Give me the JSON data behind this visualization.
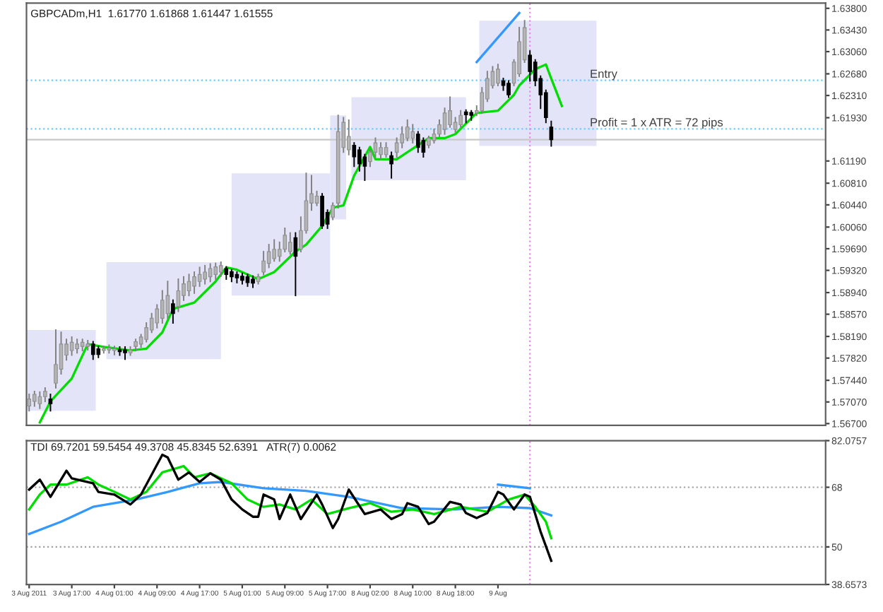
{
  "chart_data": [
    {
      "type": "candlestick",
      "title": "GBPCADm,H1  1.61770 1.61868 1.61447 1.61555",
      "tick_labels": "y",
      "categories": [
        null,
        null,
        null,
        null,
        null,
        null,
        null,
        null,
        null,
        null,
        null,
        null,
        null,
        null,
        null,
        null,
        null,
        null,
        null,
        null,
        null,
        null,
        null,
        null,
        null,
        null,
        null,
        null,
        null,
        null,
        null,
        null,
        null,
        null,
        null,
        null,
        null,
        null,
        null,
        null,
        null,
        null,
        null,
        null,
        null,
        null,
        null,
        null,
        null,
        null,
        null,
        null,
        null,
        null,
        null,
        null,
        null,
        null,
        null,
        null,
        null,
        null,
        null,
        null,
        null,
        null,
        null,
        null,
        null,
        null,
        null,
        null,
        null,
        null,
        null,
        null,
        null,
        null,
        null,
        null,
        null,
        null,
        null,
        null,
        null,
        null,
        null,
        null,
        null,
        null,
        null,
        null,
        null,
        null,
        null,
        null,
        null,
        null,
        null,
        null,
        null,
        null,
        null,
        null,
        null,
        null,
        null,
        null,
        null,
        null,
        null,
        null,
        null,
        null,
        null,
        null,
        null,
        null,
        null,
        null,
        null,
        null,
        null,
        null,
        null,
        null,
        null,
        null,
        null,
        null,
        null,
        null,
        null,
        null,
        null,
        null,
        null,
        null,
        null,
        null,
        null,
        null,
        null,
        null,
        null,
        null,
        null,
        null,
        null,
        null
      ],
      "ohlc": [
        [
          1.57,
          1.572,
          1.5692,
          1.5712
        ],
        [
          1.5708,
          1.5725,
          1.57,
          1.572
        ],
        [
          1.5704,
          1.5724,
          1.5696,
          1.5716
        ],
        [
          1.5716,
          1.5731,
          1.5708,
          1.5725
        ],
        [
          1.5712,
          1.572,
          1.5692,
          1.5704
        ],
        [
          1.5739,
          1.583,
          1.5731,
          1.5771
        ],
        [
          1.5763,
          1.5826,
          1.5755,
          1.5806
        ],
        [
          1.5787,
          1.5814,
          1.5779,
          1.5806
        ],
        [
          1.5795,
          1.5818,
          1.5787,
          1.5809
        ],
        [
          1.5798,
          1.5814,
          1.5791,
          1.5806
        ],
        [
          1.5802,
          1.5814,
          1.5795,
          1.5809
        ],
        [
          1.5802,
          1.5812,
          1.5796,
          1.5806
        ],
        [
          1.5806,
          1.581,
          1.578,
          1.5788
        ],
        [
          1.5798,
          1.5802,
          1.5783,
          1.5788
        ],
        [
          1.5795,
          1.5802,
          1.5791,
          1.5798
        ],
        [
          1.5796,
          1.5804,
          1.5791,
          1.5799
        ],
        [
          1.5795,
          1.5802,
          1.5788,
          1.5798
        ],
        [
          1.5796,
          1.5801,
          1.5787,
          1.5793
        ],
        [
          1.5796,
          1.5801,
          1.578,
          1.5791
        ],
        [
          1.5791,
          1.5801,
          1.5787,
          1.5796
        ],
        [
          1.5802,
          1.5814,
          1.5795,
          1.581
        ],
        [
          1.5806,
          1.5822,
          1.5801,
          1.5818
        ],
        [
          1.5814,
          1.5842,
          1.581,
          1.5834
        ],
        [
          1.583,
          1.5858,
          1.5826,
          1.585
        ],
        [
          1.5842,
          1.5873,
          1.5834,
          1.5866
        ],
        [
          1.585,
          1.5897,
          1.5842,
          1.5881
        ],
        [
          1.5858,
          1.5913,
          1.585,
          1.5889
        ],
        [
          1.5875,
          1.5881,
          1.5842,
          1.5858
        ],
        [
          1.587,
          1.5917,
          1.5862,
          1.5897
        ],
        [
          1.5889,
          1.5921,
          1.5881,
          1.5909
        ],
        [
          1.5897,
          1.5925,
          1.5889,
          1.5913
        ],
        [
          1.5905,
          1.5929,
          1.5893,
          1.5921
        ],
        [
          1.5913,
          1.5937,
          1.5905,
          1.5925
        ],
        [
          1.5917,
          1.594,
          1.5909,
          1.5929
        ],
        [
          1.5921,
          1.5943,
          1.5913,
          1.5935
        ],
        [
          1.5925,
          1.5944,
          1.5917,
          1.5938
        ],
        [
          1.5929,
          1.5946,
          1.5922,
          1.594
        ],
        [
          1.5935,
          1.5938,
          1.5917,
          1.5925
        ],
        [
          1.593,
          1.5933,
          1.5913,
          1.5921
        ],
        [
          1.5925,
          1.5929,
          1.5911,
          1.5919
        ],
        [
          1.5922,
          1.5927,
          1.5909,
          1.5915
        ],
        [
          1.5921,
          1.5925,
          1.5905,
          1.5911
        ],
        [
          1.5917,
          1.5922,
          1.5903,
          1.591
        ],
        [
          1.5913,
          1.5925,
          1.5909,
          1.5921
        ],
        [
          1.5929,
          1.5964,
          1.5925,
          1.5948
        ],
        [
          1.5944,
          1.5976,
          1.5937,
          1.5964
        ],
        [
          1.5952,
          1.5984,
          1.5948,
          1.5968
        ],
        [
          1.5956,
          1.598,
          1.5948,
          1.5968
        ],
        [
          1.5968,
          1.6004,
          1.5964,
          1.5992
        ],
        [
          1.5964,
          1.5996,
          1.596,
          1.598
        ],
        [
          1.5988,
          1.5996,
          1.5889,
          1.5956
        ],
        [
          1.5968,
          1.6023,
          1.5964,
          1.6
        ],
        [
          1.6,
          1.6098,
          1.5996,
          1.6051
        ],
        [
          1.6047,
          1.6094,
          1.6035,
          1.6063
        ],
        [
          1.6047,
          1.6067,
          1.6043,
          1.6059
        ],
        [
          1.6059,
          1.6063,
          1.6004,
          1.6008
        ],
        [
          1.6031,
          1.6035,
          1.6004,
          1.6011
        ],
        [
          1.6023,
          1.6047,
          1.6019,
          1.6043
        ],
        [
          1.6047,
          1.6197,
          1.6039,
          1.6169
        ],
        [
          1.6142,
          1.6193,
          1.6134,
          1.6185
        ],
        [
          1.6138,
          1.6189,
          1.613,
          1.6161
        ],
        [
          1.6146,
          1.615,
          1.611,
          1.6126
        ],
        [
          1.6138,
          1.6142,
          1.6102,
          1.6114
        ],
        [
          1.6126,
          1.613,
          1.6086,
          1.611
        ],
        [
          1.6118,
          1.6138,
          1.611,
          1.6134
        ],
        [
          1.6134,
          1.6158,
          1.6126,
          1.615
        ],
        [
          1.613,
          1.615,
          1.6122,
          1.6142
        ],
        [
          1.613,
          1.615,
          1.6126,
          1.6142
        ],
        [
          1.6128,
          1.6134,
          1.609,
          1.6114
        ],
        [
          1.6134,
          1.6158,
          1.6126,
          1.615
        ],
        [
          1.615,
          1.6177,
          1.6142,
          1.6165
        ],
        [
          1.6158,
          1.6189,
          1.6154,
          1.6177
        ],
        [
          1.6158,
          1.6181,
          1.615,
          1.6169
        ],
        [
          1.6165,
          1.6169,
          1.6134,
          1.6142
        ],
        [
          1.6154,
          1.6158,
          1.6126,
          1.6134
        ],
        [
          1.6146,
          1.6161,
          1.6142,
          1.6158
        ],
        [
          1.6154,
          1.6173,
          1.615,
          1.6165
        ],
        [
          1.6165,
          1.6189,
          1.6161,
          1.6181
        ],
        [
          1.6173,
          1.6209,
          1.6165,
          1.6201
        ],
        [
          1.6181,
          1.6228,
          1.6177,
          1.6205
        ],
        [
          1.6173,
          1.6193,
          1.6169,
          1.6185
        ],
        [
          1.6181,
          1.6205,
          1.6177,
          1.6197
        ],
        [
          1.6203,
          1.6206,
          1.6185,
          1.6198
        ],
        [
          1.6202,
          1.6205,
          1.6189,
          1.6197
        ],
        [
          1.6201,
          1.6213,
          1.6197,
          1.6205
        ],
        [
          1.6205,
          1.6244,
          1.6201,
          1.6236
        ],
        [
          1.6225,
          1.6272,
          1.6221,
          1.626
        ],
        [
          1.6248,
          1.628,
          1.6244,
          1.6272
        ],
        [
          1.6252,
          1.6284,
          1.6248,
          1.6276
        ],
        [
          1.6256,
          1.626,
          1.624,
          1.6248
        ],
        [
          1.6252,
          1.6256,
          1.6228,
          1.6232
        ],
        [
          1.6252,
          1.6292,
          1.6248,
          1.6288
        ],
        [
          1.6268,
          1.6347,
          1.6264,
          1.6323
        ],
        [
          1.6292,
          1.6359,
          1.6288,
          1.6347
        ],
        [
          1.63,
          1.6307,
          1.6256,
          1.6272
        ],
        [
          1.6288,
          1.6292,
          1.6248,
          1.6256
        ],
        [
          1.626,
          1.6264,
          1.6209,
          1.6232
        ],
        [
          1.6236,
          1.624,
          1.6185,
          1.6193
        ],
        [
          1.6177,
          1.61868,
          1.61447,
          1.61555
        ],
        null,
        null,
        null,
        null,
        null,
        null,
        null,
        null,
        null,
        null,
        null,
        null,
        null,
        null,
        null,
        null,
        null,
        null,
        null,
        null,
        null,
        null,
        null,
        null,
        null,
        null,
        null,
        null,
        null,
        null,
        null,
        null,
        null,
        null,
        null,
        null,
        null,
        null,
        null,
        null,
        null,
        null,
        null,
        null,
        null,
        null,
        null,
        null,
        null,
        null,
        null
      ],
      "series": [
        {
          "type": "line",
          "color": "#00dd00",
          "values": [
            null,
            null,
            1.5672,
            null,
            1.5708,
            null,
            null,
            null,
            1.5747,
            null,
            null,
            1.5806,
            null,
            null,
            1.5801,
            null,
            null,
            null,
            null,
            1.5795,
            null,
            null,
            1.5798,
            null,
            null,
            1.5826,
            null,
            1.5866,
            null,
            null,
            null,
            1.5877,
            null,
            null,
            null,
            1.5913,
            null,
            1.5937,
            null,
            1.5933,
            null,
            null,
            null,
            1.5917,
            null,
            null,
            1.5929,
            null,
            null,
            null,
            1.5964,
            null,
            1.5976,
            null,
            null,
            1.6008,
            null,
            1.6039,
            null,
            1.6043,
            null,
            1.6094,
            null,
            null,
            1.6143,
            1.6122,
            null,
            null,
            null,
            1.6122,
            null,
            1.6134,
            null,
            null,
            null,
            1.6158,
            null,
            null,
            1.6158,
            null,
            1.6165,
            null,
            null,
            null,
            1.6201,
            null,
            null,
            null,
            1.6205,
            null,
            null,
            1.6232,
            1.6248,
            null,
            null,
            1.6276,
            null,
            1.6284,
            1.626,
            null,
            1.6213,
            null,
            null,
            null,
            null,
            null,
            null,
            null,
            null,
            null,
            null,
            null,
            null,
            null,
            null,
            null,
            null,
            null,
            null,
            null,
            null,
            null,
            null,
            null,
            null,
            null,
            null,
            null,
            null,
            null,
            null,
            null,
            null,
            null,
            null,
            null,
            null,
            null,
            null,
            null,
            null,
            null,
            null,
            null,
            null,
            null,
            null,
            null,
            null,
            null
          ]
        },
        {
          "type": "line",
          "color": "#3399ff",
          "values": [
            null,
            null,
            null,
            null,
            null,
            null,
            null,
            null,
            null,
            null,
            null,
            null,
            null,
            null,
            null,
            null,
            null,
            null,
            null,
            null,
            null,
            null,
            null,
            null,
            null,
            null,
            null,
            null,
            null,
            null,
            null,
            null,
            null,
            null,
            null,
            null,
            null,
            null,
            null,
            null,
            null,
            null,
            null,
            null,
            null,
            null,
            null,
            null,
            null,
            null,
            null,
            null,
            null,
            null,
            null,
            null,
            null,
            null,
            null,
            null,
            null,
            null,
            null,
            null,
            null,
            null,
            null,
            null,
            null,
            null,
            null,
            null,
            null,
            null,
            null,
            null,
            null,
            null,
            null,
            null,
            null,
            null,
            null,
            null,
            1.6288,
            null,
            null,
            null,
            null,
            null,
            null,
            null,
            1.6372,
            null,
            null,
            null,
            null,
            null,
            null,
            null,
            null,
            null,
            null,
            null,
            null,
            null,
            null,
            null,
            null,
            null,
            null,
            null,
            null,
            null,
            null,
            null,
            null,
            null,
            null,
            null,
            null,
            null,
            null,
            null,
            null,
            null,
            null,
            null,
            null,
            null,
            null,
            null,
            null,
            null,
            null,
            null,
            null,
            null,
            null,
            null,
            null,
            null,
            null,
            null,
            null,
            null,
            null,
            null,
            null,
            null
          ]
        }
      ],
      "annotations": [
        "Profit = 1 x ATR = 72 pips"
      ],
      "ref_lines": [
        {
          "axis": "y",
          "value": 1.6257,
          "label": "Entry",
          "color": "#66ccff",
          "line_style": "dotted"
        },
        {
          "axis": "y",
          "value": 1.6174,
          "color": "#66ccff",
          "line_style": "dotted"
        },
        {
          "axis": "y",
          "value": 1.61555,
          "color": "#c8c8c8",
          "line_style": "solid"
        }
      ],
      "ylim": [
        1.5667,
        1.6389
      ],
      "yticks": [
        {
          "value": 1.567,
          "label": "1.56700"
        },
        {
          "value": 1.5707,
          "label": "1.57070"
        },
        {
          "value": 1.5744,
          "label": "1.57440"
        },
        {
          "value": 1.5782,
          "label": "1.57820"
        },
        {
          "value": 1.5819,
          "label": "1.58190"
        },
        {
          "value": 1.5857,
          "label": "1.58570"
        },
        {
          "value": 1.5894,
          "label": "1.58940"
        },
        {
          "value": 1.5932,
          "label": "1.59320"
        },
        {
          "value": 1.5969,
          "label": "1.59690"
        },
        {
          "value": 1.6006,
          "label": "1.60060"
        },
        {
          "value": 1.6044,
          "label": "1.60440"
        },
        {
          "value": 1.6081,
          "label": "1.60810"
        },
        {
          "value": 1.6119,
          "label": "1.61190"
        },
        {
          "value": 1.6193,
          "label": "1.61930"
        },
        {
          "value": 1.6231,
          "label": "1.62310"
        },
        {
          "value": 1.6268,
          "label": "1.62680"
        },
        {
          "value": 1.6306,
          "label": "1.63060"
        },
        {
          "value": 1.6343,
          "label": "1.63430"
        },
        {
          "value": 1.638,
          "label": "1.63800"
        }
      ]
    },
    {
      "type": "line",
      "title": "TDI 69.7201 59.5454 49.3708 45.8345 52.6391   ATR(7) 0.0062",
      "categories": [
        "3 Aug 2011",
        null,
        null,
        null,
        null,
        null,
        null,
        null,
        "3 Aug 17:00",
        null,
        null,
        null,
        null,
        null,
        null,
        null,
        "4 Aug 01:00",
        null,
        null,
        null,
        null,
        null,
        null,
        null,
        "4 Aug 09:00",
        null,
        null,
        null,
        null,
        null,
        null,
        null,
        "4 Aug 17:00",
        null,
        null,
        null,
        null,
        null,
        null,
        null,
        "5 Aug 01:00",
        null,
        null,
        null,
        null,
        null,
        null,
        null,
        "5 Aug 09:00",
        null,
        null,
        null,
        null,
        null,
        null,
        null,
        "5 Aug 17:00",
        null,
        null,
        null,
        null,
        null,
        null,
        null,
        "8 Aug 02:00",
        null,
        null,
        null,
        null,
        null,
        null,
        null,
        "8 Aug 10:00",
        null,
        null,
        null,
        null,
        null,
        null,
        null,
        "8 Aug 18:00",
        null,
        null,
        null,
        null,
        null,
        null,
        null,
        "9 Aug",
        null,
        null,
        null,
        null,
        null,
        null,
        null,
        null,
        null,
        null,
        null,
        null,
        null,
        null,
        null,
        null,
        null,
        null,
        null,
        null,
        null,
        null,
        null,
        null,
        null,
        null,
        null,
        null,
        null,
        null,
        null,
        null,
        null,
        null,
        null,
        null,
        null,
        null,
        null,
        null,
        null,
        null,
        null,
        null,
        null,
        null,
        null,
        null,
        null,
        null,
        null,
        null,
        null,
        null,
        null,
        null,
        null,
        null,
        null,
        null,
        null
      ],
      "series": [
        {
          "color": "#3399ff",
          "values": [
            53.9,
            null,
            null,
            null,
            null,
            null,
            57.6,
            null,
            null,
            null,
            null,
            null,
            62.1,
            null,
            null,
            null,
            null,
            null,
            null,
            null,
            64.3,
            null,
            null,
            null,
            null,
            null,
            66.6,
            null,
            null,
            null,
            null,
            null,
            69.2,
            null,
            null,
            null,
            69.6,
            null,
            null,
            null,
            null,
            null,
            null,
            null,
            67.7,
            null,
            null,
            null,
            null,
            null,
            null,
            null,
            66.9,
            null,
            null,
            null,
            null,
            null,
            null,
            null,
            65.1,
            null,
            null,
            null,
            null,
            null,
            null,
            null,
            null,
            null,
            61.7,
            null,
            null,
            null,
            null,
            null,
            null,
            null,
            null,
            null,
            61.3,
            null,
            null,
            null,
            null,
            null,
            null,
            null,
            62.1,
            null,
            null,
            null,
            null,
            null,
            61.7,
            null,
            null,
            null,
            59.5,
            null,
            null,
            null,
            null,
            null,
            null,
            null,
            null,
            null,
            null,
            null,
            null,
            null,
            null,
            null,
            null,
            null,
            null,
            null,
            null,
            null,
            null,
            null,
            null,
            null,
            null,
            null,
            null,
            null,
            null,
            null,
            null,
            null,
            null,
            null,
            null,
            null,
            null,
            null,
            null,
            null,
            null,
            null,
            null,
            null,
            null,
            null,
            null,
            null,
            null,
            null
          ]
        },
        {
          "color": "#3399ff",
          "values": [
            null,
            null,
            null,
            null,
            null,
            null,
            null,
            null,
            null,
            null,
            null,
            null,
            null,
            null,
            null,
            null,
            null,
            null,
            null,
            null,
            null,
            null,
            null,
            null,
            null,
            null,
            null,
            null,
            null,
            null,
            null,
            null,
            null,
            null,
            null,
            null,
            null,
            null,
            null,
            null,
            null,
            null,
            null,
            null,
            null,
            null,
            null,
            null,
            null,
            null,
            null,
            null,
            null,
            null,
            null,
            null,
            null,
            null,
            null,
            null,
            null,
            null,
            null,
            null,
            null,
            null,
            null,
            null,
            null,
            null,
            null,
            null,
            null,
            null,
            null,
            null,
            null,
            null,
            null,
            null,
            null,
            null,
            null,
            null,
            null,
            null,
            null,
            null,
            68.8,
            null,
            null,
            null,
            null,
            null,
            67.7,
            null,
            null,
            null,
            null,
            null,
            null,
            null,
            null,
            null,
            null,
            null,
            null,
            null,
            null,
            null,
            null,
            null,
            null,
            null,
            null,
            null,
            null,
            null,
            null,
            null,
            null,
            null,
            null,
            null,
            null,
            null,
            null,
            null,
            null,
            null,
            null,
            null,
            null,
            null,
            null,
            null,
            null,
            null,
            null,
            null,
            null,
            null,
            null,
            null,
            null,
            null,
            null,
            null,
            null,
            null
          ]
        },
        {
          "color": "#00dd00",
          "values": [
            61.3,
            null,
            65.8,
            null,
            68.8,
            null,
            null,
            68.8,
            null,
            null,
            null,
            71.0,
            null,
            68.8,
            null,
            null,
            66.6,
            null,
            null,
            64.3,
            null,
            null,
            66.6,
            null,
            null,
            72.5,
            null,
            null,
            null,
            74.4,
            null,
            71.0,
            null,
            null,
            72.2,
            null,
            null,
            null,
            69.2,
            null,
            null,
            64.3,
            null,
            null,
            62.1,
            null,
            null,
            62.8,
            null,
            null,
            61.3,
            null,
            null,
            64.3,
            null,
            null,
            59.9,
            null,
            null,
            null,
            61.7,
            null,
            null,
            null,
            63.2,
            null,
            null,
            null,
            60.6,
            null,
            null,
            null,
            61.3,
            null,
            null,
            null,
            59.9,
            null,
            null,
            null,
            null,
            62.1,
            null,
            null,
            null,
            null,
            60.6,
            null,
            null,
            null,
            64.3,
            null,
            null,
            65.8,
            null,
            62.1,
            null,
            57.6,
            52.6,
            null,
            null,
            null,
            null,
            null,
            null,
            null,
            null,
            null,
            null,
            null,
            null,
            null,
            null,
            null,
            null,
            null,
            null,
            null,
            null,
            null,
            null,
            null,
            null,
            null,
            null,
            null,
            null,
            null,
            null,
            null,
            null,
            null,
            null,
            null,
            null,
            null,
            null,
            null,
            null,
            null,
            null,
            null,
            null,
            null,
            null,
            null,
            null,
            null,
            null,
            null
          ]
        },
        {
          "color": "#000000",
          "values": [
            67.3,
            null,
            70.3,
            null,
            65.1,
            null,
            null,
            73.0,
            70.7,
            null,
            null,
            null,
            69.2,
            66.6,
            null,
            null,
            65.8,
            null,
            null,
            62.8,
            null,
            65.8,
            null,
            null,
            null,
            77.8,
            77.0,
            null,
            70.3,
            null,
            72.5,
            null,
            69.6,
            null,
            72.2,
            null,
            70.3,
            null,
            64.3,
            null,
            61.3,
            null,
            59.1,
            59.1,
            65.8,
            null,
            64.3,
            58.4,
            null,
            65.8,
            null,
            58.4,
            null,
            null,
            65.8,
            62.8,
            null,
            55.7,
            58.4,
            null,
            67.3,
            null,
            null,
            59.9,
            null,
            null,
            61.3,
            null,
            58.4,
            null,
            59.9,
            63.2,
            null,
            62.1,
            null,
            56.9,
            57.6,
            null,
            null,
            63.6,
            null,
            62.8,
            60.2,
            null,
            58.7,
            null,
            60.2,
            null,
            66.6,
            65.8,
            null,
            61.3,
            null,
            65.8,
            65.1,
            null,
            54.6,
            null,
            45.8,
            null,
            null,
            null,
            null,
            null,
            null,
            null,
            null,
            null,
            null,
            null,
            null,
            null,
            null,
            null,
            null,
            null,
            null,
            null,
            null,
            null,
            null,
            null,
            null,
            null,
            null,
            null,
            null,
            null,
            null,
            null,
            null,
            null,
            null,
            null,
            null,
            null,
            null,
            null,
            null,
            null,
            null,
            null,
            null,
            null,
            null,
            null,
            null,
            null,
            null,
            null
          ]
        }
      ],
      "ref_lines": [
        {
          "axis": "y",
          "value": 68,
          "color": "#a0a0a0",
          "line_style": "dotted"
        },
        {
          "axis": "y",
          "value": 50,
          "color": "#a0a0a0",
          "line_style": "dotted"
        }
      ],
      "ylim": [
        38.6573,
        82.0757
      ],
      "yticks": [
        {
          "value": 38.6573,
          "label": "38.6573"
        },
        {
          "value": 50,
          "label": "50"
        },
        {
          "value": 68,
          "label": "68"
        },
        {
          "value": 82.0757,
          "label": "82.0757"
        }
      ]
    }
  ]
}
